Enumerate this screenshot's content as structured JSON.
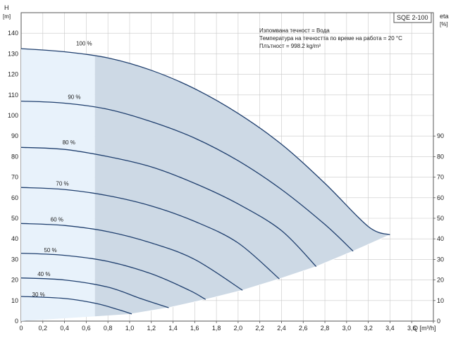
{
  "chart_data": {
    "type": "line",
    "title": "SQE 2-100",
    "notes": [
      "Изпомвана течност = Вода",
      "Температура на течността по време на работа = 20 °C",
      "Плътност = 998.2 kg/m³"
    ],
    "x_axis": {
      "label": "Q [m³/h]",
      "ticks": [
        "0",
        "0,2",
        "0,4",
        "0,6",
        "0,8",
        "1,0",
        "1,2",
        "1,4",
        "1,6",
        "1,8",
        "2,0",
        "2,2",
        "2,4",
        "2,6",
        "2,8",
        "3,0",
        "3,2",
        "3,4",
        "3,6",
        "3,8"
      ],
      "range": [
        0,
        3.8
      ]
    },
    "y_axis_left": {
      "label": "H",
      "unit": "[m]",
      "ticks": [
        "0",
        "10",
        "20",
        "30",
        "40",
        "50",
        "60",
        "70",
        "80",
        "90",
        "100",
        "110",
        "120",
        "130",
        "140"
      ],
      "range": [
        0,
        150
      ]
    },
    "y_axis_right": {
      "label": "eta",
      "unit": "[%]",
      "ticks": [
        "0",
        "10",
        "20",
        "30",
        "40",
        "50",
        "60",
        "70",
        "80",
        "90"
      ]
    },
    "fill_colors": {
      "light": "#e8f2fb",
      "dark": "#cdd9e5"
    },
    "line_color": "#1f3f6e",
    "light_region_q_max": 0.68,
    "series": [
      {
        "name": "100 %",
        "label_x": 0.58,
        "label_y": 134,
        "x": [
          0,
          0.4,
          0.8,
          1.2,
          1.6,
          2.0,
          2.4,
          2.8,
          3.2,
          3.4
        ],
        "y": [
          132.5,
          131,
          128,
          122,
          113,
          101,
          86,
          67,
          46,
          42
        ]
      },
      {
        "name": "90 %",
        "label_x": 0.49,
        "label_y": 108,
        "x": [
          0,
          0.4,
          0.8,
          1.2,
          1.6,
          2.0,
          2.4,
          2.8,
          3.06
        ],
        "y": [
          107,
          106,
          103,
          97,
          89,
          78,
          64,
          47,
          34
        ]
      },
      {
        "name": "80 %",
        "label_x": 0.44,
        "label_y": 86,
        "x": [
          0,
          0.4,
          0.8,
          1.2,
          1.6,
          2.0,
          2.4,
          2.72
        ],
        "y": [
          84.5,
          83.5,
          80,
          75,
          67,
          57,
          44,
          26.5
        ]
      },
      {
        "name": "70 %",
        "label_x": 0.38,
        "label_y": 66,
        "x": [
          0,
          0.4,
          0.8,
          1.2,
          1.6,
          2.0,
          2.38
        ],
        "y": [
          65,
          64,
          61,
          56,
          48.5,
          38,
          20.5
        ]
      },
      {
        "name": "60 %",
        "label_x": 0.33,
        "label_y": 48.5,
        "x": [
          0,
          0.4,
          0.8,
          1.2,
          1.6,
          2.04
        ],
        "y": [
          47.5,
          46.5,
          43.5,
          38,
          30,
          15
        ]
      },
      {
        "name": "50 %",
        "label_x": 0.27,
        "label_y": 33.5,
        "x": [
          0,
          0.4,
          0.8,
          1.2,
          1.55,
          1.7
        ],
        "y": [
          33,
          32,
          29,
          23,
          15,
          10.5
        ]
      },
      {
        "name": "40 %",
        "label_x": 0.21,
        "label_y": 22,
        "x": [
          0,
          0.4,
          0.8,
          1.1,
          1.36
        ],
        "y": [
          21,
          20,
          16.5,
          11,
          6.5
        ]
      },
      {
        "name": "30 %",
        "label_x": 0.16,
        "label_y": 12,
        "x": [
          0,
          0.4,
          0.7,
          0.9,
          1.02
        ],
        "y": [
          12,
          11,
          8.5,
          5.5,
          3.5
        ]
      }
    ],
    "grid": true,
    "legend": "none"
  }
}
